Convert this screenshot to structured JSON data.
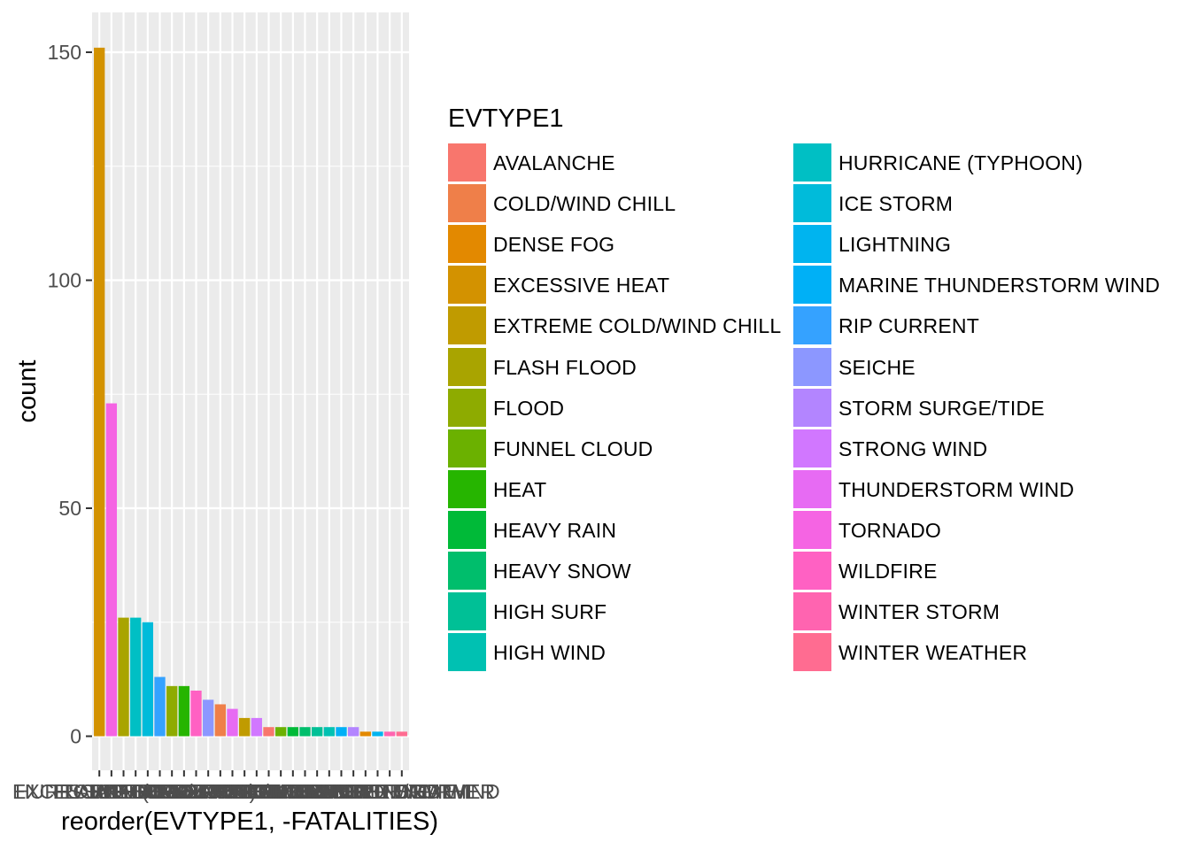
{
  "chart_data": {
    "type": "bar",
    "xlabel": "reorder(EVTYPE1, -FATALITIES)",
    "ylabel": "count",
    "ylim": [
      0,
      160
    ],
    "yticks": [
      0,
      50,
      100,
      150
    ],
    "grid": true,
    "legend": {
      "title": "EVTYPE1",
      "placement": "right",
      "columns": 2
    },
    "categories": [
      {
        "name": "AVALANCHE",
        "color": "#F8766D"
      },
      {
        "name": "COLD/WIND CHILL",
        "color": "#EF7F49"
      },
      {
        "name": "DENSE FOG",
        "color": "#E38900"
      },
      {
        "name": "EXCESSIVE HEAT",
        "color": "#D39200"
      },
      {
        "name": "EXTREME COLD/WIND CHILL",
        "color": "#C09B00"
      },
      {
        "name": "FLASH FLOOD",
        "color": "#A9A400"
      },
      {
        "name": "FLOOD",
        "color": "#8EAB00"
      },
      {
        "name": "FUNNEL CLOUD",
        "color": "#6BB100"
      },
      {
        "name": "HEAT",
        "color": "#26B500"
      },
      {
        "name": "HEAVY RAIN",
        "color": "#00BA38"
      },
      {
        "name": "HEAVY SNOW",
        "color": "#00BE6C"
      },
      {
        "name": "HIGH SURF",
        "color": "#00C096"
      },
      {
        "name": "HIGH WIND",
        "color": "#00C1B2"
      },
      {
        "name": "HURRICANE (TYPHOON)",
        "color": "#00BFC4"
      },
      {
        "name": "ICE STORM",
        "color": "#00BBDA"
      },
      {
        "name": "LIGHTNING",
        "color": "#00B4EF"
      },
      {
        "name": "MARINE THUNDERSTORM WIND",
        "color": "#00B0F6"
      },
      {
        "name": "RIP CURRENT",
        "color": "#35A2FF"
      },
      {
        "name": "SEICHE",
        "color": "#8C97FF"
      },
      {
        "name": "STORM SURGE/TIDE",
        "color": "#B385FF"
      },
      {
        "name": "STRONG WIND",
        "color": "#D177FF"
      },
      {
        "name": "THUNDERSTORM WIND",
        "color": "#E76BF3"
      },
      {
        "name": "TORNADO",
        "color": "#F564E3"
      },
      {
        "name": "WILDFIRE",
        "color": "#FF61C3"
      },
      {
        "name": "WINTER STORM",
        "color": "#FF64B0"
      },
      {
        "name": "WINTER WEATHER",
        "color": "#FF6C91"
      }
    ],
    "bars": [
      {
        "category": "EXCESSIVE HEAT",
        "value": 151
      },
      {
        "category": "TORNADO",
        "value": 73
      },
      {
        "category": "FLASH FLOOD",
        "value": 26
      },
      {
        "category": "HURRICANE (TYPHOON)",
        "value": 26
      },
      {
        "category": "ICE STORM",
        "value": 25
      },
      {
        "category": "RIP CURRENT",
        "value": 13
      },
      {
        "category": "FLOOD",
        "value": 11
      },
      {
        "category": "HEAT",
        "value": 11
      },
      {
        "category": "WILDFIRE",
        "value": 10
      },
      {
        "category": "SEICHE",
        "value": 8
      },
      {
        "category": "COLD/WIND CHILL",
        "value": 7
      },
      {
        "category": "THUNDERSTORM WIND",
        "value": 6
      },
      {
        "category": "EXTREME COLD/WIND CHILL",
        "value": 4
      },
      {
        "category": "STRONG WIND",
        "value": 4
      },
      {
        "category": "AVALANCHE",
        "value": 2
      },
      {
        "category": "FUNNEL CLOUD",
        "value": 2
      },
      {
        "category": "HEAVY RAIN",
        "value": 2
      },
      {
        "category": "HEAVY SNOW",
        "value": 2
      },
      {
        "category": "HIGH SURF",
        "value": 2
      },
      {
        "category": "HIGH WIND",
        "value": 2
      },
      {
        "category": "MARINE THUNDERSTORM WIND",
        "value": 2
      },
      {
        "category": "STORM SURGE/TIDE",
        "value": 2
      },
      {
        "category": "DENSE FOG",
        "value": 1
      },
      {
        "category": "LIGHTNING",
        "value": 1
      },
      {
        "category": "WINTER STORM",
        "value": 1
      },
      {
        "category": "WINTER WEATHER",
        "value": 1
      }
    ]
  }
}
